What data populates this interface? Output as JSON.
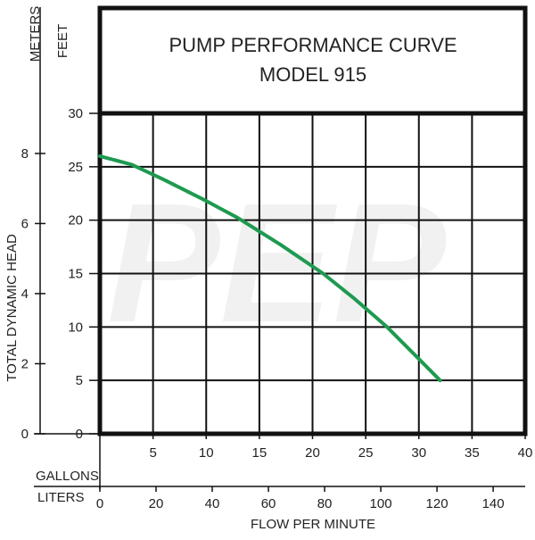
{
  "watermark": "PEP",
  "chart_data": {
    "type": "line",
    "title": "PUMP PERFORMANCE CURVE",
    "subtitle": "MODEL 915",
    "xlabel": "FLOW PER MINUTE",
    "ylabel": "TOTAL DYNAMIC HEAD",
    "x_primary_unit": "GALLONS",
    "x_secondary_unit": "LITERS",
    "y_primary_unit": "FEET",
    "y_secondary_unit": "METERS",
    "xlim": [
      0,
      40
    ],
    "ylim": [
      0,
      30
    ],
    "x_ticks": [
      "5",
      "10",
      "15",
      "20",
      "25",
      "30",
      "35",
      "40"
    ],
    "x_tick_values": [
      5,
      10,
      15,
      20,
      25,
      30,
      35,
      40
    ],
    "liters_ticks": [
      "0",
      "20",
      "40",
      "60",
      "80",
      "100",
      "120",
      "140"
    ],
    "liters_tick_values": [
      0,
      20,
      40,
      60,
      80,
      100,
      120,
      140
    ],
    "y_ticks": [
      "0",
      "5",
      "10",
      "15",
      "20",
      "25",
      "30"
    ],
    "y_tick_values": [
      0,
      5,
      10,
      15,
      20,
      25,
      30
    ],
    "meters_ticks": [
      "0",
      "2",
      "4",
      "6",
      "8"
    ],
    "meters_tick_values": [
      0,
      2,
      4,
      6,
      8
    ],
    "grid": true,
    "series": [
      {
        "color": "#1e9a50",
        "x": [
          0,
          3,
          6,
          10,
          13,
          17,
          21,
          24,
          27,
          30,
          32
        ],
        "y": [
          26,
          25.2,
          23.8,
          21.8,
          20.2,
          17.7,
          15,
          12.6,
          10,
          7,
          5
        ]
      }
    ]
  }
}
